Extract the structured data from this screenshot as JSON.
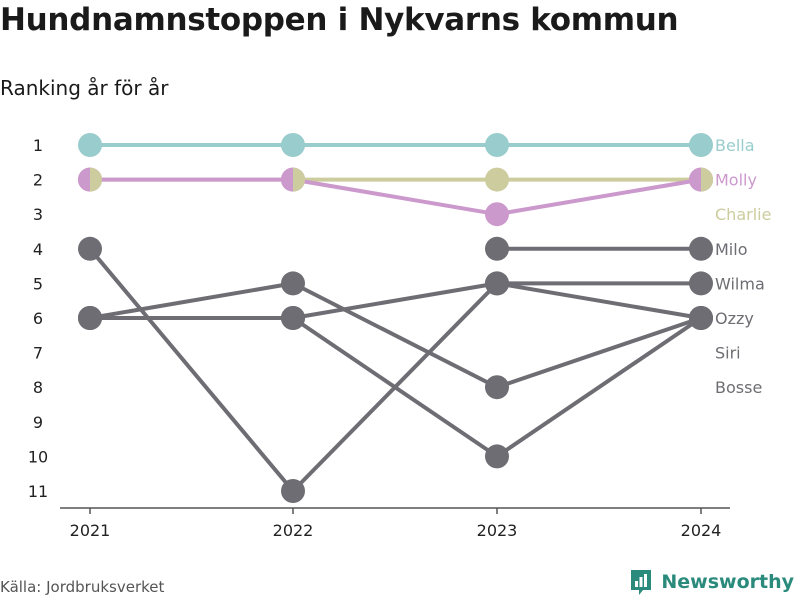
{
  "title": "Hundnamnstoppen i Nykvarns kommun",
  "subtitle": "Ranking år för år",
  "source": "Källa: Jordbruksverket",
  "brand": {
    "name": "Newsworthy",
    "icon": "newsworthy-logo-icon",
    "color": "#2a8a7b"
  },
  "chart_data": {
    "type": "line",
    "x": [
      "2021",
      "2022",
      "2023",
      "2024"
    ],
    "y_ticks": [
      "1",
      "2",
      "3",
      "4",
      "5",
      "6",
      "7",
      "8",
      "9",
      "10",
      "11"
    ],
    "ylim": [
      1,
      11
    ],
    "y_inverted": true,
    "grid": false,
    "series": [
      {
        "name": "Siri",
        "color": "#6e6d73",
        "values": [
          6,
          5,
          8,
          6
        ]
      },
      {
        "name": "Bosse",
        "color": "#6e6d73",
        "values": [
          6,
          6,
          10,
          6
        ]
      },
      {
        "name": "Wilma",
        "color": "#6e6d73",
        "values": [
          6,
          6,
          5,
          5
        ]
      },
      {
        "name": "Ozzy",
        "color": "#6e6d73",
        "values": [
          4,
          11,
          5,
          6
        ]
      },
      {
        "name": "Milo",
        "color": "#6e6d73",
        "values": [
          null,
          null,
          4,
          4
        ]
      },
      {
        "name": "Charlie",
        "color": "#cccc9e",
        "values": [
          2,
          2,
          2,
          2
        ]
      },
      {
        "name": "Molly",
        "color": "#cc99cc",
        "values": [
          2,
          2,
          3,
          2
        ]
      },
      {
        "name": "Bella",
        "color": "#99cccc",
        "values": [
          1,
          1,
          1,
          1
        ]
      }
    ],
    "end_labels": [
      {
        "name": "Bella",
        "row": 1,
        "color": "#99cccc"
      },
      {
        "name": "Molly",
        "row": 2,
        "color": "#cc99cc"
      },
      {
        "name": "Charlie",
        "row": 3,
        "color": "#cccc9e"
      },
      {
        "name": "Milo",
        "row": 4,
        "color": "#6e6d73"
      },
      {
        "name": "Wilma",
        "row": 5,
        "color": "#6e6d73"
      },
      {
        "name": "Ozzy",
        "row": 6,
        "color": "#6e6d73"
      },
      {
        "name": "Siri",
        "row": 7,
        "color": "#6e6d73"
      },
      {
        "name": "Bosse",
        "row": 8,
        "color": "#6e6d73"
      }
    ]
  }
}
